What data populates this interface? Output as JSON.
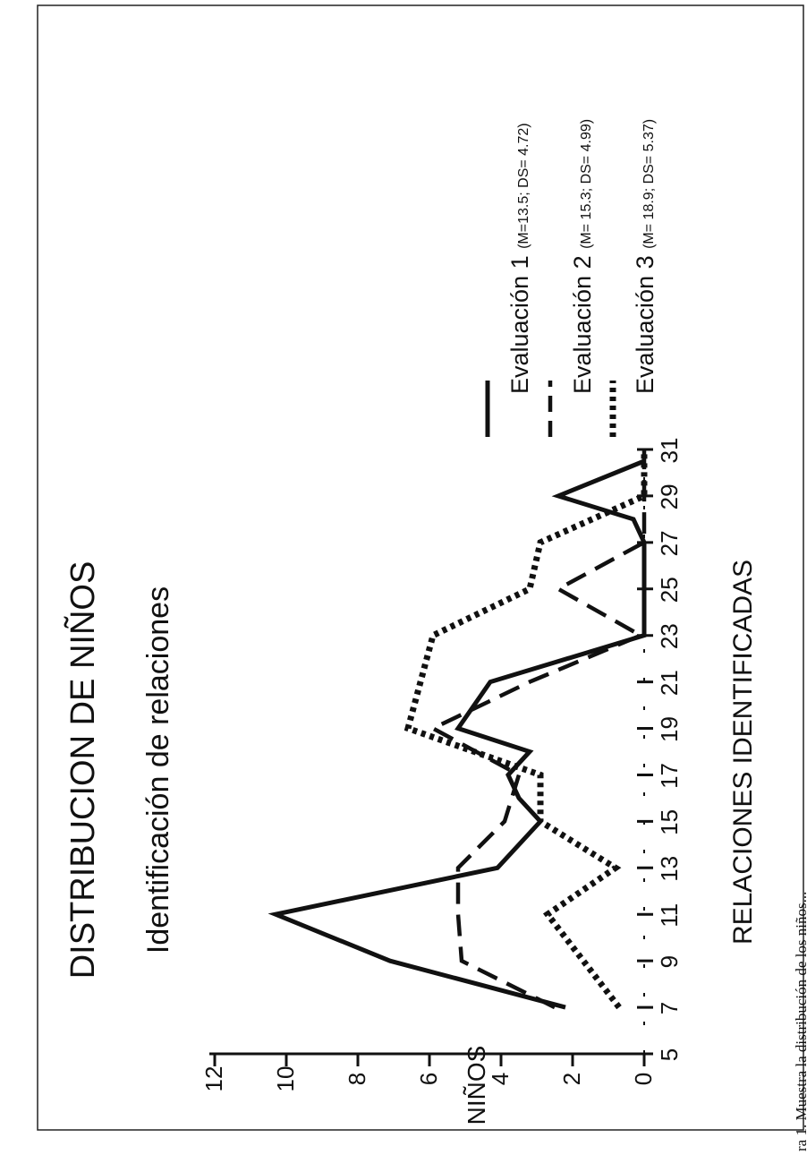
{
  "chart_data": {
    "type": "line",
    "title": "DISTRIBUCION DE NIÑOS",
    "subtitle": "Identificación de relaciones",
    "xlabel": "RELACIONES IDENTIFICADAS",
    "ylabel": "NIÑOS",
    "x_ticks": [
      "5",
      "7",
      "9",
      "11",
      "13",
      "15",
      "17",
      "19",
      "21",
      "23",
      "25",
      "27",
      "29",
      "31"
    ],
    "y_ticks": [
      "0",
      "2",
      "4",
      "6",
      "8",
      "10",
      "12"
    ],
    "xlim": [
      5,
      31
    ],
    "ylim": [
      0,
      12
    ],
    "series": [
      {
        "name": "Evaluación 1",
        "stats": "(M=13.5; DS= 4.72)",
        "style": "solid",
        "x": [
          7,
          9,
          11,
          13,
          15,
          16,
          17,
          18,
          19,
          21,
          23,
          25,
          27,
          28,
          29,
          30.5
        ],
        "y": [
          2.2,
          7.1,
          10.3,
          4.1,
          2.9,
          3.5,
          3.8,
          3.2,
          5.2,
          4.3,
          0,
          0,
          0,
          0.3,
          2.4,
          0
        ]
      },
      {
        "name": "Evaluación 2",
        "stats": "(M= 15.3; DS= 4.99)",
        "style": "dashed",
        "x": [
          7,
          9,
          11,
          13,
          15,
          17,
          19,
          21,
          23,
          25,
          27,
          29,
          31
        ],
        "y": [
          2.5,
          5.1,
          5.2,
          5.2,
          3.9,
          3.5,
          5.9,
          3.2,
          0.1,
          2.4,
          0,
          0,
          0
        ]
      },
      {
        "name": "Evaluación 3",
        "stats": "(M= 18.9; DS= 5.37)",
        "style": "dotted",
        "x": [
          7,
          11,
          13,
          15,
          17,
          19,
          23,
          25,
          27,
          29,
          31
        ],
        "y": [
          0.7,
          2.7,
          0.8,
          2.9,
          2.9,
          6.6,
          5.9,
          3.2,
          2.9,
          0,
          0
        ]
      }
    ],
    "legend_position": "right",
    "grid": false
  },
  "caption": "ra 1. Muestra la distribución de los niños..."
}
